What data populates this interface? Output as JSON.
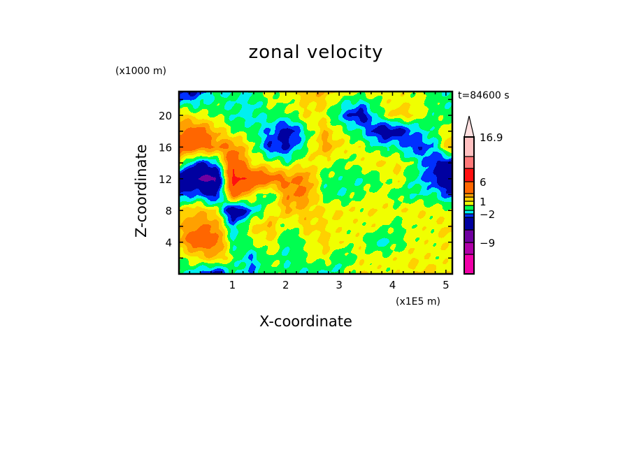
{
  "chart_data": {
    "type": "heatmap",
    "subtype": "filled-contour",
    "title": "zonal velocity",
    "xlabel": "X-coordinate",
    "ylabel": "Z-coordinate",
    "x_unit_label": "(x1E5 m)",
    "y_unit_label": "(x1000 m)",
    "time_label": "t=84600 s",
    "xlim": [
      0,
      5.12
    ],
    "ylim": [
      0,
      23
    ],
    "x_ticks": [
      1,
      2,
      3,
      4,
      5
    ],
    "y_ticks": [
      4,
      8,
      12,
      16,
      20
    ],
    "x_minor_step": 0.2,
    "y_minor_step": 2,
    "grid_x": [
      0,
      0.34,
      0.68,
      1.02,
      1.36,
      1.7,
      2.04,
      2.38,
      2.72,
      3.06,
      3.4,
      3.74,
      4.08,
      4.42,
      4.76,
      5.12
    ],
    "grid_z": [
      23,
      20,
      18,
      16,
      14,
      12,
      10,
      8,
      6,
      4,
      2,
      0
    ],
    "values": [
      [
        -4,
        -3,
        -1,
        -1,
        -1,
        0.5,
        0.5,
        1.5,
        2,
        0.5,
        0.5,
        0.5,
        0.5,
        0.3,
        -0.5,
        -1
      ],
      [
        1.5,
        0.5,
        0,
        -1,
        -1.5,
        -0.5,
        -0.5,
        1,
        0.5,
        -2,
        -4,
        -0.5,
        1.5,
        1,
        -0.5,
        -0.5
      ],
      [
        3,
        4,
        2,
        0,
        -0.5,
        -2,
        -4,
        -1,
        2,
        0,
        -1,
        -4,
        -4,
        -2,
        -0.5,
        1
      ],
      [
        4,
        4,
        3,
        3,
        0.5,
        -3,
        -3,
        -0.5,
        2.5,
        1,
        0.5,
        -1,
        -1,
        -3,
        -2,
        2.5
      ],
      [
        1,
        -3,
        -2,
        5,
        1,
        0.5,
        -0.5,
        1,
        0.5,
        -0.5,
        0.5,
        1,
        1,
        -0.5,
        -3,
        -4
      ],
      [
        -5,
        -6,
        -7,
        7,
        5,
        4,
        3,
        3,
        -0.5,
        -0.5,
        -1,
        -0.5,
        1,
        -1,
        -3,
        -5
      ],
      [
        -3,
        -2,
        -4,
        4,
        1,
        -1,
        3,
        3,
        -0.5,
        -1,
        0,
        0.5,
        -0.5,
        -1,
        -1,
        -3
      ],
      [
        1,
        2,
        1,
        -5,
        -2,
        0.5,
        2,
        1.5,
        1,
        1,
        0.5,
        1,
        0.5,
        1,
        0.5,
        0.5
      ],
      [
        2,
        3,
        3,
        -2,
        1,
        2,
        -0.5,
        1.5,
        1,
        0.5,
        0.5,
        0.5,
        -0.5,
        0.5,
        0.5,
        1.5
      ],
      [
        2,
        4,
        4,
        -1,
        0,
        1,
        -1,
        0,
        1.5,
        0.5,
        0.5,
        -1.5,
        -0.5,
        0.5,
        0.5,
        1
      ],
      [
        0,
        1,
        2,
        0,
        -2,
        0,
        -1,
        0,
        0.5,
        -1,
        0.5,
        0.5,
        0.5,
        1,
        0.5,
        0.5
      ],
      [
        -0.5,
        -2,
        -4,
        -1,
        -2,
        0,
        -0.5,
        -1,
        -1.5,
        -0.5,
        1,
        0.5,
        0.5,
        1,
        1.5,
        0.5
      ]
    ],
    "colorbar": {
      "levels": [
        -12,
        -9,
        -6,
        -3,
        -2,
        -1,
        0,
        1,
        2,
        3,
        6,
        9,
        12,
        16.9
      ],
      "colors": [
        "#f000a8",
        "#b000a8",
        "#7000a0",
        "#0000a0",
        "#0030ff",
        "#00f0f0",
        "#00ff50",
        "#f0ff00",
        "#ffd000",
        "#ffa000",
        "#ff6600",
        "#ff1010",
        "#ff7878",
        "#ffc0c0",
        "#ffe0e0"
      ],
      "labels": [
        {
          "value": 16.9,
          "text": "16.9"
        },
        {
          "value": 6,
          "text": "6"
        },
        {
          "value": 1,
          "text": "1"
        },
        {
          "value": -2,
          "text": "−2"
        },
        {
          "value": -9,
          "text": "−9"
        }
      ],
      "extend": "max"
    }
  }
}
